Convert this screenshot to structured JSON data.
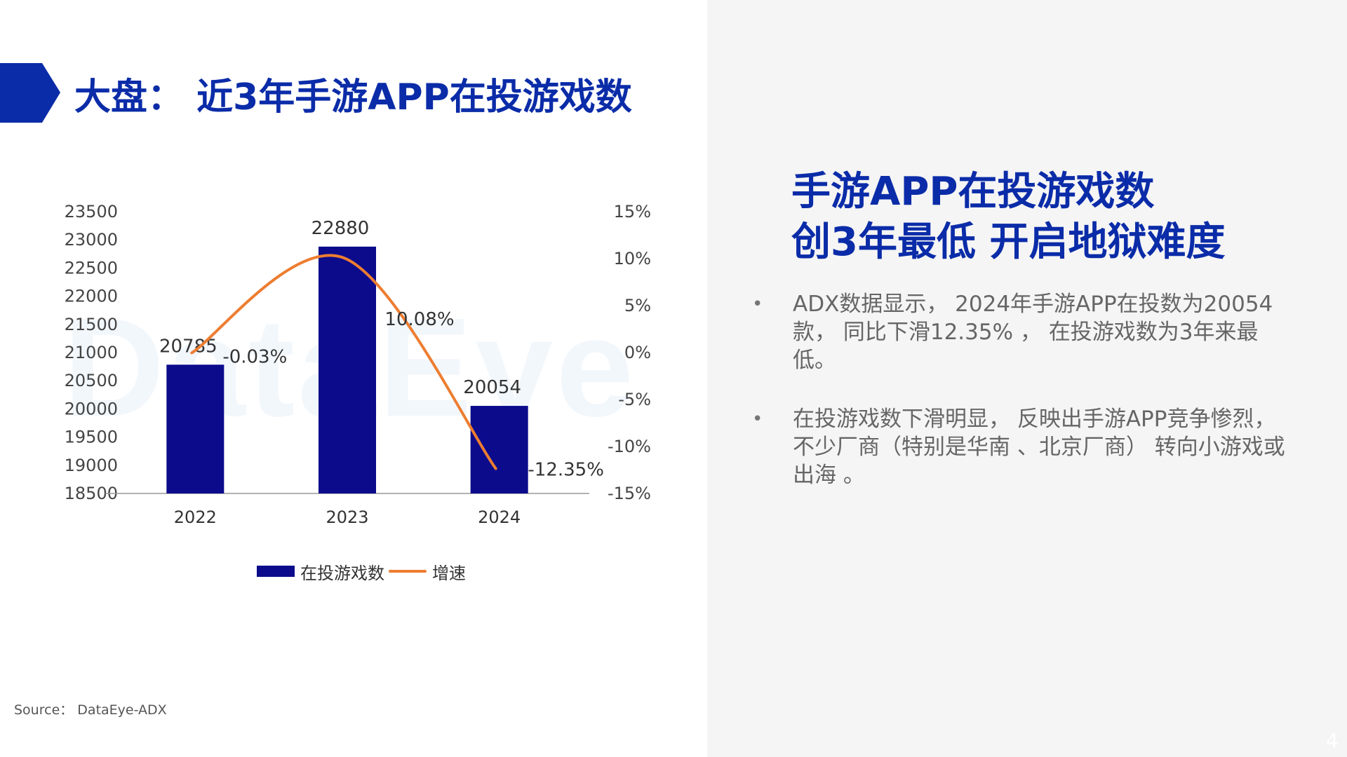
{
  "slide": {
    "title": "大盘： 近3年手游APP在投游戏数",
    "source": "Source： DataEye-ADX",
    "page_number": "4",
    "watermark": "DataEye",
    "accent_color": "#0b2ca8",
    "panel_color": "#f5f5f5"
  },
  "headline": {
    "line1": "手游APP在投游戏数",
    "line2": "创3年最低   开启地狱难度"
  },
  "bullets": [
    {
      "marker": "•",
      "text": "ADX数据显示， 2024年手游APP在投数为20054款， 同比下滑12.35% ， 在投游戏数为3年来最低。"
    },
    {
      "marker": "•",
      "text": " 在投游戏数下滑明显， 反映出手游APP竞争惨烈， 不少厂商（特别是华南 、北京厂商） 转向小游戏或出海 。"
    }
  ],
  "chart_data": {
    "type": "bar",
    "categories": [
      "2022",
      "2023",
      "2024"
    ],
    "series": [
      {
        "name": "在投游戏数",
        "type": "bar",
        "axis": "left",
        "color": "#0b0b8c",
        "values": [
          20785,
          22880,
          20054
        ],
        "data_labels": [
          "20785",
          "22880",
          "20054"
        ]
      },
      {
        "name": "增速",
        "type": "line",
        "axis": "right",
        "color": "#ed7d31",
        "values": [
          -0.03,
          10.08,
          -12.35
        ],
        "data_labels": [
          "-0.03%",
          "10.08%",
          "-12.35%"
        ]
      }
    ],
    "left_axis": {
      "ticks": [
        "23500",
        "23000",
        "22500",
        "22000",
        "21500",
        "21000",
        "20500",
        "20000",
        "19500",
        "19000",
        "18500"
      ],
      "ylim": [
        18500,
        23500
      ]
    },
    "right_axis": {
      "ticks": [
        "15%",
        "10%",
        "5%",
        "0%",
        "-5%",
        "-10%",
        "-15%"
      ],
      "ylim": [
        -15,
        15
      ]
    },
    "legend_position": "bottom",
    "grid": false
  }
}
